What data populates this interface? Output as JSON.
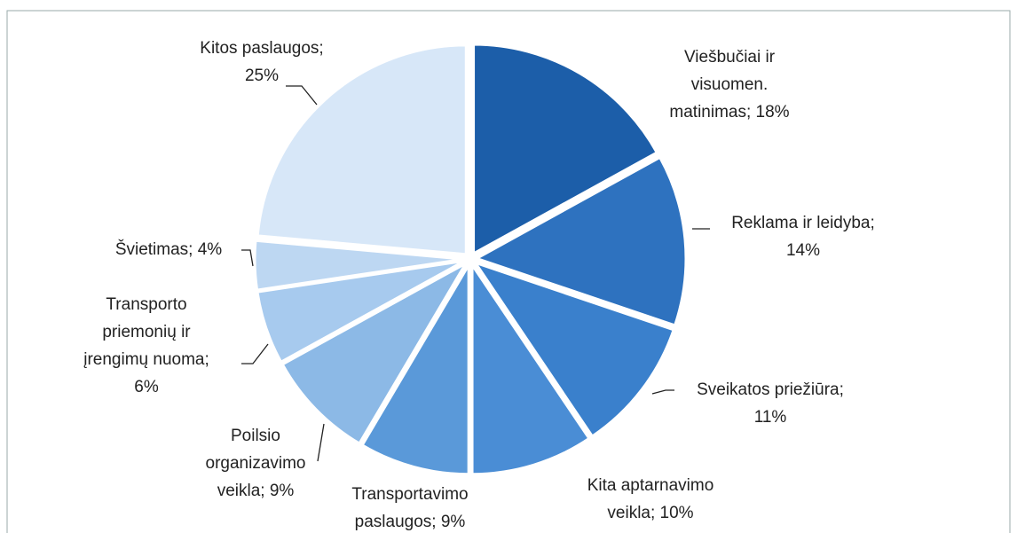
{
  "chart_data": {
    "type": "pie",
    "labels": [
      [
        "Viešbučiai ir",
        "visuomen.",
        "matinimas; 18%"
      ],
      [
        "Reklama ir leidyba;",
        "14%"
      ],
      [
        "Sveikatos priežiūra;",
        "11%"
      ],
      [
        "Kita aptarnavimo",
        "veikla; 10%"
      ],
      [
        "Transportavimo",
        "paslaugos; 9%"
      ],
      [
        "Poilsio",
        "organizavimo",
        "veikla; 9%"
      ],
      [
        "Transporto",
        "priemonių ir",
        "įrengimų nuoma;",
        "6%"
      ],
      [
        "Švietimas; 4%"
      ],
      [
        "Kitos paslaugos;",
        "25%"
      ]
    ],
    "values": [
      18,
      14,
      11,
      10,
      9,
      9,
      6,
      4,
      25
    ],
    "colors": [
      "#1c5ea9",
      "#2e72bf",
      "#3a80cc",
      "#4a8dd5",
      "#5a99d9",
      "#8cb9e6",
      "#a7caee",
      "#bdd7f2",
      "#d7e7f8"
    ]
  }
}
